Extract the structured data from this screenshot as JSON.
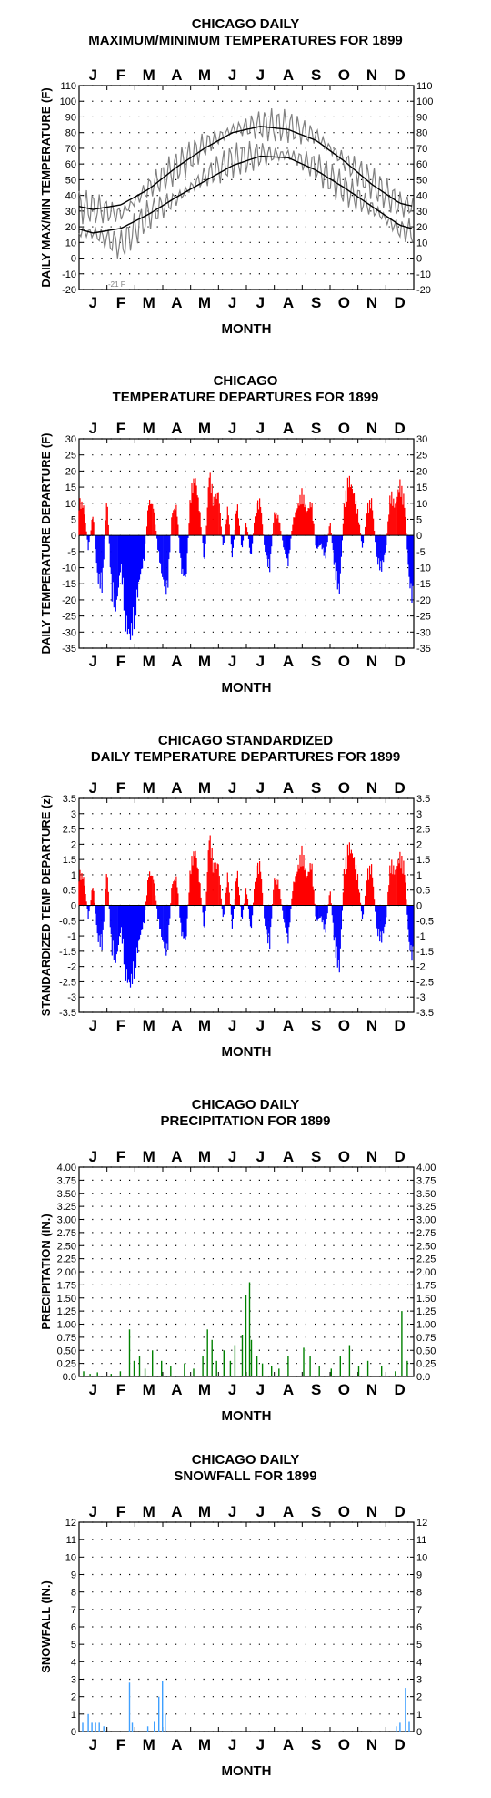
{
  "months": [
    "J",
    "F",
    "M",
    "A",
    "M",
    "J",
    "J",
    "A",
    "S",
    "O",
    "N",
    "D"
  ],
  "xlabel": "MONTH",
  "colors": {
    "warm": "#ff0000",
    "cold": "#0000ff",
    "precip": "#008000",
    "snow": "#3fa0ff",
    "daily": "#808080",
    "normal": "#000000"
  },
  "annotation_min": "-21 F",
  "chart_data": [
    {
      "type": "line",
      "title_line1": "CHICAGO DAILY",
      "title_line2": "MAXIMUM/MINIMUM TEMPERATURES FOR 1899",
      "ylabel": "DAILY MAX/MIN TEMPERATURE (F)",
      "ylim": [
        -20,
        110
      ],
      "yticks": [
        110,
        100,
        90,
        80,
        70,
        60,
        50,
        40,
        30,
        20,
        10,
        0,
        -10,
        -20
      ],
      "series": [],
      "daily_max_by_month_approx": [
        32,
        28,
        45,
        58,
        72,
        82,
        85,
        84,
        78,
        62,
        48,
        34
      ],
      "daily_min_by_month_approx": [
        16,
        8,
        28,
        38,
        52,
        62,
        66,
        66,
        58,
        44,
        32,
        18
      ],
      "normal_max_by_month_approx": [
        31,
        34,
        44,
        58,
        70,
        80,
        84,
        82,
        75,
        62,
        47,
        35
      ],
      "normal_min_by_month_approx": [
        16,
        19,
        28,
        39,
        49,
        59,
        65,
        64,
        56,
        45,
        33,
        21
      ],
      "annual_min": -21
    },
    {
      "type": "bar",
      "title_line1": "CHICAGO",
      "title_line2": "TEMPERATURE DEPARTURES FOR 1899",
      "ylabel": "DAILY TEMPERATURE DEPARTURE (F)",
      "ylim": [
        -35,
        30
      ],
      "yticks": [
        30,
        25,
        20,
        15,
        10,
        5,
        0,
        -5,
        -10,
        -15,
        -20,
        -25,
        -30,
        -35
      ],
      "daily_departures_sampled_approx": [
        12,
        10,
        -5,
        8,
        -15,
        -18,
        14,
        -20,
        -25,
        -10,
        -30,
        -35,
        -28,
        -15,
        -8,
        12,
        10,
        -5,
        -15,
        -20,
        8,
        10,
        -12,
        -15,
        15,
        20,
        8,
        -10,
        22,
        12,
        15,
        -5,
        10,
        -8,
        12,
        -5,
        5,
        -8,
        10,
        12,
        -6,
        -12,
        8,
        6,
        -4,
        -10,
        5,
        10,
        15,
        8,
        12,
        -5,
        -3,
        -8,
        5,
        -12,
        -20,
        10,
        20,
        15,
        8,
        -5,
        10,
        12,
        -8,
        -12,
        -5,
        15,
        10,
        18,
        12,
        -15,
        -25
      ]
    },
    {
      "type": "bar",
      "title_line1": "CHICAGO STANDARDIZED",
      "title_line2": "DAILY TEMPERATURE DEPARTURES FOR 1899",
      "ylabel": "STANDARDIZED TEMP DEPARTURE (z)",
      "ylim": [
        -3.5,
        3.5
      ],
      "yticks": [
        3.5,
        3.0,
        2.5,
        2.0,
        1.5,
        1.0,
        0.5,
        0.0,
        -0.5,
        -1.0,
        -1.5,
        -2.0,
        -2.5,
        -3.0,
        -3.5
      ],
      "daily_departures_sampled_approx": [
        1.2,
        1.0,
        -0.5,
        0.8,
        -1.2,
        -1.5,
        1.4,
        -1.6,
        -2.0,
        -0.8,
        -2.5,
        -2.9,
        -2.3,
        -1.2,
        -0.6,
        1.2,
        1.0,
        -0.5,
        -1.3,
        -1.8,
        0.8,
        1.0,
        -1.0,
        -1.3,
        1.5,
        2.0,
        0.8,
        -1.0,
        2.6,
        1.4,
        1.5,
        -0.6,
        1.2,
        -0.9,
        1.4,
        -0.6,
        0.7,
        -1.0,
        1.3,
        1.5,
        -0.8,
        -1.5,
        1.0,
        0.8,
        -0.5,
        -1.3,
        0.7,
        1.3,
        2.0,
        1.0,
        1.6,
        -0.6,
        -0.4,
        -1.0,
        0.6,
        -1.5,
        -2.4,
        1.2,
        2.2,
        1.8,
        1.0,
        -0.6,
        1.2,
        1.4,
        -0.9,
        -1.3,
        -0.6,
        1.6,
        1.2,
        1.8,
        1.4,
        -1.4,
        -2.1
      ]
    },
    {
      "type": "bar",
      "title_line1": "CHICAGO DAILY",
      "title_line2": "PRECIPITATION FOR 1899",
      "ylabel": "PRECIPITATION (IN.)",
      "ylim": [
        0,
        4
      ],
      "yticks": [
        "4.00",
        "3.75",
        "3.50",
        "3.25",
        "3.00",
        "2.75",
        "2.50",
        "2.25",
        "2.00",
        "1.75",
        "1.50",
        "1.25",
        "1.00",
        "0.75",
        "0.50",
        "0.25",
        "0.0"
      ],
      "events_day_of_year_amount_approx": [
        [
          5,
          0.1
        ],
        [
          12,
          0.05
        ],
        [
          20,
          0.08
        ],
        [
          35,
          0.05
        ],
        [
          45,
          0.1
        ],
        [
          55,
          0.9
        ],
        [
          60,
          0.3
        ],
        [
          66,
          0.4
        ],
        [
          72,
          0.15
        ],
        [
          80,
          0.5
        ],
        [
          90,
          0.3
        ],
        [
          100,
          0.2
        ],
        [
          115,
          0.25
        ],
        [
          125,
          0.15
        ],
        [
          135,
          0.4
        ],
        [
          140,
          0.9
        ],
        [
          145,
          0.7
        ],
        [
          150,
          0.3
        ],
        [
          158,
          0.5
        ],
        [
          165,
          0.3
        ],
        [
          170,
          0.6
        ],
        [
          178,
          0.8
        ],
        [
          182,
          1.55
        ],
        [
          186,
          1.8
        ],
        [
          188,
          0.7
        ],
        [
          194,
          0.4
        ],
        [
          200,
          0.25
        ],
        [
          210,
          0.2
        ],
        [
          218,
          0.15
        ],
        [
          228,
          0.4
        ],
        [
          245,
          0.55
        ],
        [
          252,
          0.4
        ],
        [
          262,
          0.2
        ],
        [
          275,
          0.15
        ],
        [
          285,
          0.4
        ],
        [
          295,
          0.6
        ],
        [
          305,
          0.2
        ],
        [
          315,
          0.3
        ],
        [
          330,
          0.2
        ],
        [
          345,
          0.1
        ],
        [
          352,
          1.25
        ],
        [
          358,
          0.3
        ]
      ]
    },
    {
      "type": "bar",
      "title_line1": "CHICAGO DAILY",
      "title_line2": "SNOWFALL FOR 1899",
      "ylabel": "SNOWFALL (IN.)",
      "ylim": [
        0,
        12
      ],
      "yticks": [
        12,
        11,
        10,
        9,
        8,
        7,
        6,
        5,
        4,
        3,
        2,
        1,
        0
      ],
      "events_day_of_year_amount_approx": [
        [
          4,
          0.5
        ],
        [
          10,
          1.0
        ],
        [
          14,
          0.5
        ],
        [
          18,
          0.5
        ],
        [
          22,
          0.5
        ],
        [
          27,
          0.3
        ],
        [
          55,
          2.8
        ],
        [
          58,
          0.5
        ],
        [
          75,
          0.3
        ],
        [
          82,
          0.6
        ],
        [
          87,
          2.0
        ],
        [
          91,
          2.9
        ],
        [
          94,
          1.0
        ],
        [
          346,
          0.3
        ],
        [
          350,
          0.5
        ],
        [
          356,
          2.5
        ],
        [
          360,
          0.6
        ]
      ]
    }
  ]
}
